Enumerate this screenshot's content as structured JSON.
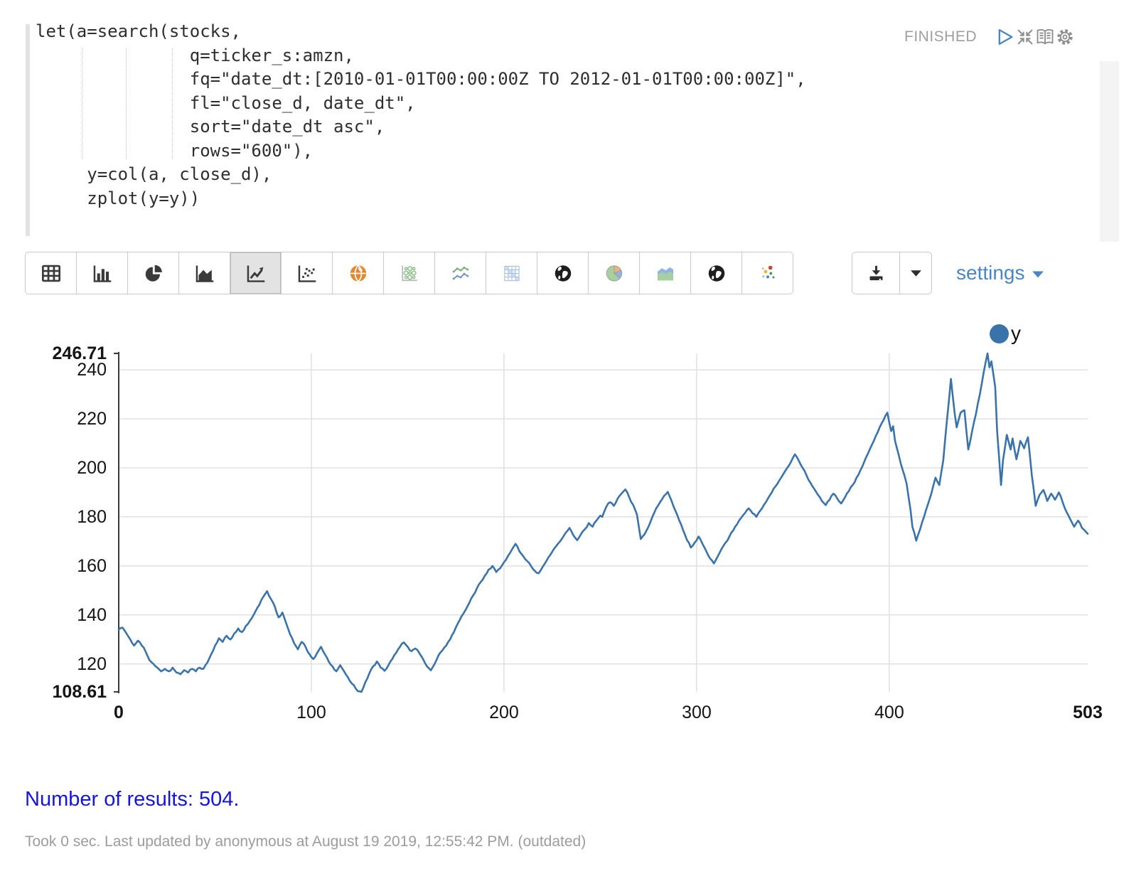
{
  "paragraph": {
    "status": "FINISHED",
    "code": "let(a=search(stocks,\n               q=ticker_s:amzn,\n               fq=\"date_dt:[2010-01-01T00:00:00Z TO 2012-01-01T00:00:00Z]\",\n               fl=\"close_d, date_dt\",\n               sort=\"date_dt asc\",\n               rows=\"600\"),\n     y=col(a, close_d),\n     zplot(y=y))",
    "control_icons": [
      "run-icon",
      "collapse-icon",
      "show-editor-icon",
      "gear-icon"
    ]
  },
  "toolbar": {
    "chart_types": [
      "table",
      "bar-chart",
      "pie-chart",
      "area-chart",
      "line-chart",
      "scatter-chart",
      "globe-orange",
      "bubble-chart",
      "multi-line-chart",
      "heatmap",
      "globe-dark",
      "pie-chart-color",
      "area-chart-color",
      "globe-dark-2",
      "scatter-color"
    ],
    "selected": "line-chart",
    "download_icons": [
      "download-icon",
      "chevron-down-icon"
    ],
    "settings_label": "settings"
  },
  "chart_data": {
    "type": "line",
    "title": "",
    "xlabel": "",
    "ylabel": "",
    "grid": true,
    "x_range": [
      0,
      503
    ],
    "y_range": [
      108.61,
      246.71
    ],
    "x_ticks": [
      {
        "v": 0,
        "label": "0",
        "bold": true
      },
      {
        "v": 100,
        "label": "100"
      },
      {
        "v": 200,
        "label": "200"
      },
      {
        "v": 300,
        "label": "300"
      },
      {
        "v": 400,
        "label": "400"
      },
      {
        "v": 503,
        "label": "503",
        "bold": true
      }
    ],
    "y_ticks": [
      {
        "v": 246.71,
        "label": "246.71",
        "bold": true
      },
      {
        "v": 240,
        "label": "240"
      },
      {
        "v": 220,
        "label": "220"
      },
      {
        "v": 200,
        "label": "200"
      },
      {
        "v": 180,
        "label": "180"
      },
      {
        "v": 160,
        "label": "160"
      },
      {
        "v": 140,
        "label": "140"
      },
      {
        "v": 120,
        "label": "120"
      },
      {
        "v": 108.61,
        "label": "108.61",
        "bold": true
      }
    ],
    "legend": {
      "position": "top-right",
      "items": [
        {
          "label": "y",
          "color": "#3a73a9"
        }
      ]
    },
    "series": [
      {
        "name": "y",
        "color": "#3a73a9",
        "n_points": 504,
        "anchors": [
          [
            0,
            133.9
          ],
          [
            2,
            134.8
          ],
          [
            4,
            132.5
          ],
          [
            6,
            130
          ],
          [
            8,
            127.5
          ],
          [
            10,
            129.5
          ],
          [
            12,
            127.5
          ],
          [
            14,
            125
          ],
          [
            16,
            121.5
          ],
          [
            18,
            120
          ],
          [
            20,
            118.5
          ],
          [
            22,
            117
          ],
          [
            24,
            118
          ],
          [
            26,
            117
          ],
          [
            28,
            118.5
          ],
          [
            30,
            116.5
          ],
          [
            32,
            115.8
          ],
          [
            34,
            117.5
          ],
          [
            36,
            116.5
          ],
          [
            38,
            118
          ],
          [
            40,
            117
          ],
          [
            42,
            118.5
          ],
          [
            44,
            118
          ],
          [
            46,
            120.5
          ],
          [
            48,
            124
          ],
          [
            50,
            127.5
          ],
          [
            52,
            130.5
          ],
          [
            54,
            129
          ],
          [
            56,
            131.5
          ],
          [
            58,
            130
          ],
          [
            60,
            132.5
          ],
          [
            62,
            134.5
          ],
          [
            64,
            133
          ],
          [
            66,
            135.5
          ],
          [
            68,
            137.5
          ],
          [
            70,
            140
          ],
          [
            72,
            143
          ],
          [
            74,
            146
          ],
          [
            76,
            148.5
          ],
          [
            77,
            149.7
          ],
          [
            79,
            146.5
          ],
          [
            81,
            143.5
          ],
          [
            83,
            139
          ],
          [
            85,
            141
          ],
          [
            87,
            136.5
          ],
          [
            89,
            132
          ],
          [
            91,
            128.5
          ],
          [
            93,
            126
          ],
          [
            95,
            129
          ],
          [
            97,
            127
          ],
          [
            99,
            124
          ],
          [
            101,
            122
          ],
          [
            103,
            124.5
          ],
          [
            105,
            127
          ],
          [
            107,
            124
          ],
          [
            109,
            121
          ],
          [
            111,
            119
          ],
          [
            113,
            117
          ],
          [
            115,
            119.5
          ],
          [
            117,
            117
          ],
          [
            119,
            114.5
          ],
          [
            121,
            112
          ],
          [
            123,
            110
          ],
          [
            125,
            108.8
          ],
          [
            126,
            108.61
          ],
          [
            128,
            112.5
          ],
          [
            130,
            116
          ],
          [
            132,
            119
          ],
          [
            134,
            121
          ],
          [
            136,
            118.5
          ],
          [
            138,
            117.2
          ],
          [
            140,
            119.5
          ],
          [
            142,
            122
          ],
          [
            144,
            124.5
          ],
          [
            146,
            127
          ],
          [
            148,
            128.8
          ],
          [
            150,
            127
          ],
          [
            152,
            125.2
          ],
          [
            154,
            126.3
          ],
          [
            156,
            124.5
          ],
          [
            158,
            122
          ],
          [
            160,
            119
          ],
          [
            162,
            117.4
          ],
          [
            164,
            120
          ],
          [
            166,
            123.5
          ],
          [
            168,
            125.5
          ],
          [
            170,
            127.5
          ],
          [
            172,
            130
          ],
          [
            174,
            133
          ],
          [
            176,
            136.5
          ],
          [
            178,
            139.5
          ],
          [
            180,
            142
          ],
          [
            182,
            145
          ],
          [
            184,
            148
          ],
          [
            186,
            151
          ],
          [
            188,
            153.5
          ],
          [
            190,
            156
          ],
          [
            192,
            158.5
          ],
          [
            194,
            160
          ],
          [
            196,
            157.5
          ],
          [
            198,
            159
          ],
          [
            200,
            161.5
          ],
          [
            202,
            164
          ],
          [
            204,
            166.5
          ],
          [
            206,
            169
          ],
          [
            208,
            166
          ],
          [
            210,
            164
          ],
          [
            212,
            162
          ],
          [
            214,
            160
          ],
          [
            216,
            158
          ],
          [
            218,
            157
          ],
          [
            220,
            159.5
          ],
          [
            222,
            162
          ],
          [
            224,
            164.5
          ],
          [
            226,
            167
          ],
          [
            228,
            169
          ],
          [
            230,
            171
          ],
          [
            232,
            173.5
          ],
          [
            234,
            175.5
          ],
          [
            236,
            172.5
          ],
          [
            238,
            170.5
          ],
          [
            240,
            173
          ],
          [
            242,
            175
          ],
          [
            244,
            177.5
          ],
          [
            246,
            176
          ],
          [
            248,
            178.5
          ],
          [
            250,
            180.5
          ],
          [
            251,
            180
          ],
          [
            253,
            184
          ],
          [
            255,
            186
          ],
          [
            257,
            184.5
          ],
          [
            259,
            187.5
          ],
          [
            261,
            189.5
          ],
          [
            263,
            191.2
          ],
          [
            265,
            188
          ],
          [
            267,
            185
          ],
          [
            269,
            181
          ],
          [
            270,
            176
          ],
          [
            271,
            171
          ],
          [
            273,
            173
          ],
          [
            275,
            176
          ],
          [
            277,
            180
          ],
          [
            279,
            183.5
          ],
          [
            281,
            186
          ],
          [
            283,
            188.5
          ],
          [
            285,
            190.2
          ],
          [
            287,
            186.5
          ],
          [
            289,
            182.5
          ],
          [
            291,
            178.5
          ],
          [
            293,
            174.5
          ],
          [
            295,
            170.5
          ],
          [
            297,
            167.5
          ],
          [
            299,
            169.5
          ],
          [
            301,
            172
          ],
          [
            303,
            169
          ],
          [
            305,
            166
          ],
          [
            307,
            163
          ],
          [
            309,
            161
          ],
          [
            311,
            164
          ],
          [
            313,
            167
          ],
          [
            315,
            169.5
          ],
          [
            317,
            172
          ],
          [
            319,
            174.5
          ],
          [
            321,
            177
          ],
          [
            323,
            179.5
          ],
          [
            325,
            181.5
          ],
          [
            327,
            183.5
          ],
          [
            329,
            181.5
          ],
          [
            331,
            180
          ],
          [
            333,
            182.5
          ],
          [
            335,
            185
          ],
          [
            337,
            187.5
          ],
          [
            339,
            190
          ],
          [
            341,
            192.5
          ],
          [
            343,
            195
          ],
          [
            345,
            197.5
          ],
          [
            347,
            200
          ],
          [
            349,
            202.5
          ],
          [
            351,
            205.5
          ],
          [
            353,
            203
          ],
          [
            355,
            200
          ],
          [
            357,
            197
          ],
          [
            359,
            194
          ],
          [
            361,
            191.5
          ],
          [
            363,
            189
          ],
          [
            365,
            186.5
          ],
          [
            367,
            184.8
          ],
          [
            369,
            187
          ],
          [
            371,
            189.5
          ],
          [
            373,
            187.5
          ],
          [
            375,
            185.5
          ],
          [
            377,
            188
          ],
          [
            379,
            190.5
          ],
          [
            381,
            193
          ],
          [
            383,
            196
          ],
          [
            385,
            199
          ],
          [
            387,
            202.5
          ],
          [
            389,
            206
          ],
          [
            391,
            209.5
          ],
          [
            393,
            213
          ],
          [
            395,
            216.5
          ],
          [
            397,
            219.5
          ],
          [
            399,
            222.5
          ],
          [
            401,
            215
          ],
          [
            402,
            217
          ],
          [
            403,
            211
          ],
          [
            405,
            205
          ],
          [
            407,
            199
          ],
          [
            409,
            193.5
          ],
          [
            411,
            183
          ],
          [
            412,
            176
          ],
          [
            414,
            170.3
          ],
          [
            416,
            175
          ],
          [
            418,
            180
          ],
          [
            420,
            185
          ],
          [
            422,
            190
          ],
          [
            424,
            196
          ],
          [
            426,
            193
          ],
          [
            428,
            203
          ],
          [
            430,
            220
          ],
          [
            432,
            236.3
          ],
          [
            434,
            222
          ],
          [
            435,
            216.5
          ],
          [
            437,
            222.5
          ],
          [
            439,
            223.5
          ],
          [
            441,
            207.5
          ],
          [
            443,
            215
          ],
          [
            445,
            222
          ],
          [
            447,
            230
          ],
          [
            449,
            239
          ],
          [
            451,
            246.71
          ],
          [
            452,
            241
          ],
          [
            453,
            243.5
          ],
          [
            455,
            233
          ],
          [
            456,
            215
          ],
          [
            458,
            193
          ],
          [
            459,
            203
          ],
          [
            461,
            213.5
          ],
          [
            463,
            207.5
          ],
          [
            464,
            212
          ],
          [
            466,
            203.5
          ],
          [
            468,
            211
          ],
          [
            470,
            208
          ],
          [
            472,
            212.5
          ],
          [
            474,
            197
          ],
          [
            476,
            184.5
          ],
          [
            478,
            189
          ],
          [
            480,
            191
          ],
          [
            482,
            186.5
          ],
          [
            484,
            189.5
          ],
          [
            486,
            187
          ],
          [
            488,
            190
          ],
          [
            490,
            186
          ],
          [
            492,
            182
          ],
          [
            494,
            179
          ],
          [
            496,
            176
          ],
          [
            498,
            178.5
          ],
          [
            500,
            175.5
          ],
          [
            502,
            174
          ],
          [
            503,
            173.1
          ]
        ]
      }
    ]
  },
  "output": {
    "results_text": "Number of results: 504.",
    "footer_text": "Took 0 sec. Last updated by anonymous at August 19 2019, 12:55:42 PM. (outdated)"
  },
  "colors": {
    "line": "#3a73a9",
    "accent_blue": "#4a86c6",
    "results_blue": "#1515dd",
    "grid": "#e0e0e0",
    "axis": "#3a3a3a",
    "muted": "#9e9e9e"
  }
}
